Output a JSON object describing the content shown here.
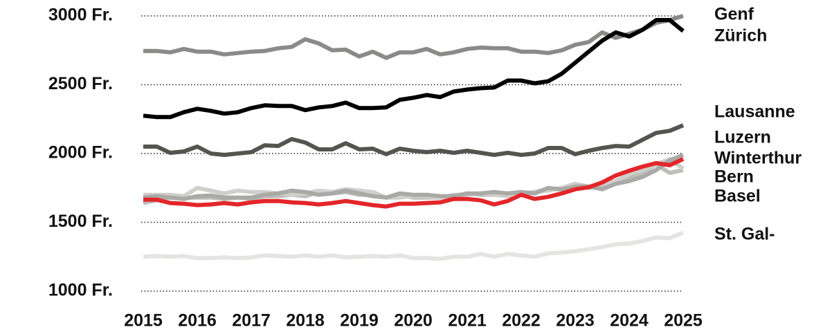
{
  "chart_data": {
    "type": "line",
    "x": [
      2015,
      2015.25,
      2015.5,
      2015.75,
      2016,
      2016.25,
      2016.5,
      2016.75,
      2017,
      2017.25,
      2017.5,
      2017.75,
      2018,
      2018.25,
      2018.5,
      2018.75,
      2019,
      2019.25,
      2019.5,
      2019.75,
      2020,
      2020.25,
      2020.5,
      2020.75,
      2021,
      2021.25,
      2021.5,
      2021.75,
      2022,
      2022.25,
      2022.5,
      2022.75,
      2023,
      2023.25,
      2023.5,
      2023.75,
      2024,
      2024.25,
      2024.5,
      2024.75,
      2025
    ],
    "xlim": [
      2015,
      2025
    ],
    "xticks": [
      2015,
      2016,
      2017,
      2018,
      2019,
      2020,
      2021,
      2022,
      2023,
      2024,
      2025
    ],
    "ylim": [
      1000,
      3000
    ],
    "yticks": [
      {
        "value": 1000,
        "label": "1000 Fr."
      },
      {
        "value": 1500,
        "label": "1500 Fr."
      },
      {
        "value": 2000,
        "label": "2000 Fr."
      },
      {
        "value": 2500,
        "label": "2500 Fr."
      },
      {
        "value": 3000,
        "label": "3000 Fr."
      }
    ],
    "grid": true,
    "series": [
      {
        "name": "Genf",
        "color": "#8a8a87",
        "values": [
          2745,
          2745,
          2735,
          2760,
          2740,
          2740,
          2720,
          2730,
          2740,
          2745,
          2765,
          2775,
          2830,
          2800,
          2750,
          2755,
          2705,
          2740,
          2695,
          2735,
          2735,
          2760,
          2720,
          2735,
          2760,
          2770,
          2765,
          2765,
          2740,
          2740,
          2730,
          2750,
          2790,
          2810,
          2880,
          2840,
          2870,
          2900,
          2950,
          2970,
          3000
        ]
      },
      {
        "name": "Zürich",
        "color": "#000000",
        "values": [
          2275,
          2265,
          2265,
          2300,
          2325,
          2310,
          2290,
          2300,
          2330,
          2350,
          2345,
          2345,
          2315,
          2335,
          2345,
          2370,
          2330,
          2330,
          2335,
          2390,
          2405,
          2425,
          2410,
          2450,
          2465,
          2475,
          2480,
          2530,
          2530,
          2510,
          2525,
          2580,
          2660,
          2740,
          2820,
          2880,
          2850,
          2900,
          2970,
          2970,
          2890
        ]
      },
      {
        "name": "Lausanne",
        "color": "#55554f",
        "values": [
          2050,
          2050,
          2005,
          2015,
          2050,
          2000,
          1990,
          2000,
          2010,
          2060,
          2055,
          2105,
          2080,
          2030,
          2030,
          2075,
          2030,
          2035,
          1995,
          2035,
          2020,
          2010,
          2020,
          2005,
          2020,
          2005,
          1990,
          2005,
          1990,
          2000,
          2040,
          2040,
          1995,
          2020,
          2040,
          2055,
          2050,
          2100,
          2150,
          2165,
          2205
        ]
      },
      {
        "name": "Luzern",
        "color": "#a9a9a6",
        "values": [
          1680,
          1690,
          1680,
          1670,
          1690,
          1695,
          1680,
          1680,
          1680,
          1700,
          1710,
          1730,
          1720,
          1700,
          1710,
          1730,
          1710,
          1690,
          1680,
          1710,
          1700,
          1700,
          1690,
          1690,
          1710,
          1710,
          1720,
          1710,
          1720,
          1710,
          1750,
          1740,
          1760,
          1760,
          1740,
          1780,
          1800,
          1830,
          1880,
          1950,
          1990
        ]
      },
      {
        "name": "Winterthur",
        "color": "#e3262a",
        "values": [
          1665,
          1665,
          1640,
          1635,
          1625,
          1630,
          1640,
          1630,
          1645,
          1655,
          1655,
          1645,
          1640,
          1630,
          1640,
          1655,
          1640,
          1625,
          1615,
          1635,
          1635,
          1640,
          1645,
          1670,
          1670,
          1660,
          1630,
          1655,
          1700,
          1670,
          1685,
          1710,
          1740,
          1755,
          1790,
          1840,
          1875,
          1905,
          1930,
          1915,
          1960
        ]
      },
      {
        "name": "Bern",
        "color": "#cfcfcc",
        "values": [
          1700,
          1700,
          1700,
          1690,
          1750,
          1730,
          1710,
          1730,
          1720,
          1720,
          1710,
          1700,
          1710,
          1730,
          1720,
          1740,
          1730,
          1720,
          1680,
          1680,
          1690,
          1690,
          1680,
          1700,
          1700,
          1710,
          1700,
          1690,
          1700,
          1720,
          1730,
          1750,
          1780,
          1760,
          1780,
          1800,
          1850,
          1880,
          1920,
          1960,
          1890
        ]
      },
      {
        "name": "Basel",
        "color": "#bdbdba",
        "values": [
          1640,
          1660,
          1680,
          1680,
          1680,
          1680,
          1670,
          1680,
          1670,
          1690,
          1690,
          1700,
          1690,
          1720,
          1710,
          1720,
          1700,
          1700,
          1680,
          1700,
          1680,
          1680,
          1680,
          1690,
          1710,
          1700,
          1700,
          1710,
          1710,
          1720,
          1740,
          1740,
          1770,
          1750,
          1770,
          1780,
          1820,
          1860,
          1920,
          1860,
          1880
        ]
      },
      {
        "name": "St. Gal-",
        "color": "#e4e4e2",
        "values": [
          1250,
          1255,
          1250,
          1255,
          1240,
          1240,
          1245,
          1240,
          1245,
          1260,
          1255,
          1250,
          1260,
          1250,
          1260,
          1245,
          1250,
          1255,
          1250,
          1260,
          1240,
          1240,
          1235,
          1250,
          1250,
          1270,
          1250,
          1270,
          1260,
          1250,
          1275,
          1280,
          1290,
          1305,
          1320,
          1340,
          1345,
          1365,
          1390,
          1385,
          1425
        ]
      }
    ]
  }
}
